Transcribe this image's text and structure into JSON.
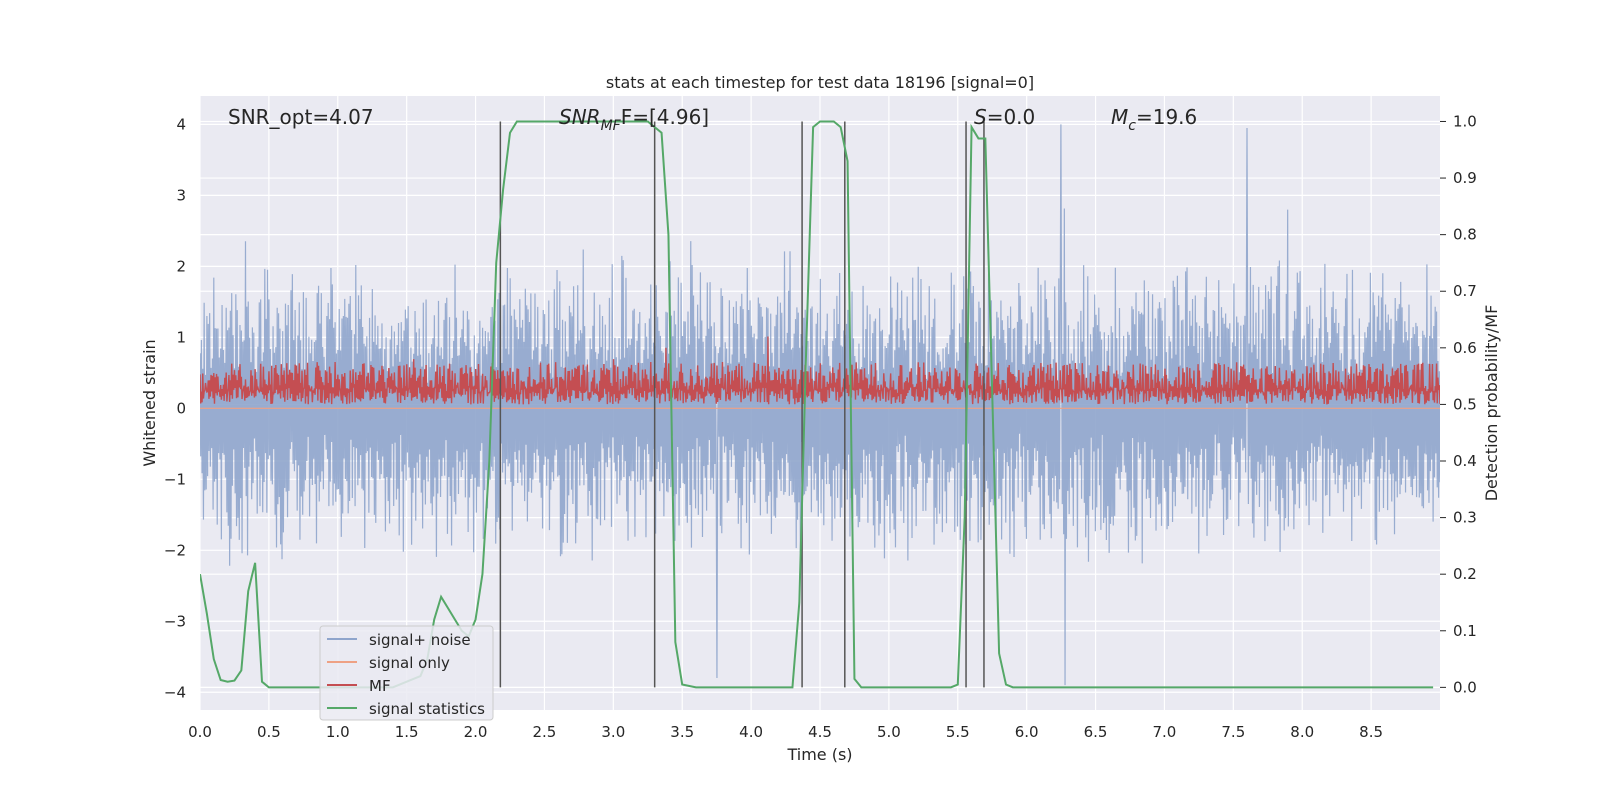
{
  "chart_data": {
    "type": "line",
    "title": "stats at each timestep for test data 18196 [signal=0]",
    "xlabel": "Time (s)",
    "ylabel": "Whitened strain",
    "ylabel_right": "Detection probability/MF",
    "xlim": [
      0.0,
      9.0
    ],
    "ylim": [
      -4.25,
      4.4
    ],
    "ylim_right": [
      -0.04,
      1.045
    ],
    "xticks": [
      0.0,
      0.5,
      1.0,
      1.5,
      2.0,
      2.5,
      3.0,
      3.5,
      4.0,
      4.5,
      5.0,
      5.5,
      6.0,
      6.5,
      7.0,
      7.5,
      8.0,
      8.5
    ],
    "xtick_labels": [
      "0.0",
      "0.5",
      "1.0",
      "1.5",
      "2.0",
      "2.5",
      "3.0",
      "3.5",
      "4.0",
      "4.5",
      "5.0",
      "5.5",
      "6.0",
      "6.5",
      "7.0",
      "7.5",
      "8.0",
      "8.5"
    ],
    "yticks": [
      4,
      3,
      2,
      1,
      0,
      -1,
      -2,
      -3,
      -4
    ],
    "ytick_labels": [
      "4",
      "3",
      "2",
      "1",
      "0",
      "−1",
      "−2",
      "−3",
      "−4"
    ],
    "yticks_right": [
      1.0,
      0.9,
      0.8,
      0.7,
      0.6,
      0.5,
      0.4,
      0.3,
      0.2,
      0.1,
      0.0
    ],
    "ytick_labels_right": [
      "1.0",
      "0.9",
      "0.8",
      "0.7",
      "0.6",
      "0.5",
      "0.4",
      "0.3",
      "0.2",
      "0.1",
      "0.0"
    ],
    "annotations": {
      "snr_opt": "SNR_opt=4.07",
      "snr_mf_base": "SNR",
      "snr_mf_sub": "MF",
      "snr_mf_value": "F=[4.96]",
      "s_var": "S",
      "s_value": "=0.0",
      "mc_var": "M",
      "mc_sub": "c",
      "mc_value": "=19.6"
    },
    "legend": {
      "placement": "lower-left",
      "entries": [
        "signal+ noise",
        "signal only",
        "MF",
        "signal statistics"
      ]
    },
    "series": [
      {
        "name": "signal+ noise",
        "color": "#8fa5cc",
        "axis": "left",
        "description": "whitened strain noise, approx. uniform in [-2.4, 2.4] with spikes up to 4.0 / -3.9",
        "sample_count": 1800,
        "typical_range": [
          -2.4,
          2.4
        ],
        "peaks": [
          {
            "x": 6.25,
            "y": 4.0
          },
          {
            "x": 7.6,
            "y": 3.95
          },
          {
            "x": 6.28,
            "y": -3.9
          },
          {
            "x": 3.75,
            "y": -3.8
          }
        ]
      },
      {
        "name": "signal only",
        "color": "#eea184",
        "axis": "left",
        "x": [
          0.0,
          9.0
        ],
        "y": [
          0.0,
          0.0
        ]
      },
      {
        "name": "MF",
        "color": "#c44e52",
        "axis": "right",
        "description": "matched-filter output between 0.5 and ~0.62 with spikes",
        "sample_count": 1800,
        "typical_range": [
          0.5,
          0.6
        ],
        "peaks": [
          {
            "x": 4.12,
            "y": 0.62
          },
          {
            "x": 3.38,
            "y": 0.6
          },
          {
            "x": 1.55,
            "y": 0.58
          },
          {
            "x": 3.0,
            "y": 0.58
          }
        ]
      },
      {
        "name": "signal statistics",
        "color": "#55a868",
        "axis": "right",
        "x": [
          0.0,
          0.05,
          0.1,
          0.15,
          0.2,
          0.25,
          0.3,
          0.35,
          0.4,
          0.45,
          0.5,
          0.6,
          0.8,
          1.0,
          1.2,
          1.4,
          1.5,
          1.6,
          1.65,
          1.7,
          1.75,
          1.8,
          1.85,
          1.9,
          1.95,
          2.0,
          2.05,
          2.1,
          2.15,
          2.2,
          2.25,
          2.3,
          2.4,
          2.5,
          2.7,
          3.0,
          3.25,
          3.3,
          3.35,
          3.4,
          3.45,
          3.5,
          3.6,
          3.8,
          4.0,
          4.2,
          4.3,
          4.35,
          4.4,
          4.45,
          4.5,
          4.6,
          4.65,
          4.7,
          4.75,
          4.8,
          4.9,
          5.2,
          5.45,
          5.5,
          5.55,
          5.6,
          5.65,
          5.7,
          5.75,
          5.8,
          5.85,
          5.9,
          6.2,
          7.0,
          8.0,
          8.95
        ],
        "y": [
          0.2,
          0.13,
          0.05,
          0.013,
          0.01,
          0.012,
          0.03,
          0.17,
          0.22,
          0.01,
          0.0,
          0.0,
          0.0,
          0.0,
          0.0,
          0.0,
          0.01,
          0.02,
          0.05,
          0.12,
          0.16,
          0.14,
          0.12,
          0.1,
          0.09,
          0.12,
          0.2,
          0.4,
          0.75,
          0.88,
          0.98,
          1.0,
          1.0,
          1.0,
          1.0,
          1.0,
          1.0,
          0.99,
          0.98,
          0.8,
          0.08,
          0.005,
          0.0,
          0.0,
          0.0,
          0.0,
          0.0,
          0.15,
          0.6,
          0.99,
          1.0,
          1.0,
          0.99,
          0.93,
          0.015,
          0.0,
          0.0,
          0.0,
          0.0,
          0.005,
          0.3,
          0.99,
          0.97,
          0.97,
          0.52,
          0.06,
          0.005,
          0.0,
          0.0,
          0.0,
          0.0,
          0.0
        ]
      }
    ],
    "vertical_markers": [
      2.18,
      3.3,
      4.37,
      4.68,
      5.56,
      5.69
    ]
  }
}
